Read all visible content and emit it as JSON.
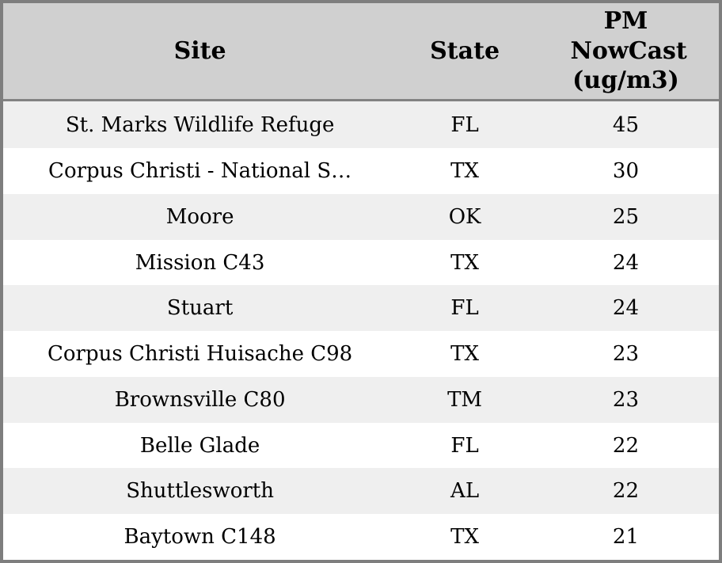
{
  "colors": {
    "frame-border": "#7e7e7e",
    "header-bg": "#d0d0d0",
    "header-border": "#828282",
    "row-odd": "#efefef",
    "row-even": "#ffffff",
    "text": "#000000"
  },
  "table": {
    "columns": [
      {
        "label": "Site"
      },
      {
        "label": "State"
      },
      {
        "label": "PM NowCast (ug/m3)"
      }
    ],
    "rows": [
      {
        "site": "St. Marks Wildlife Refuge",
        "state": "FL",
        "pm_nowcast": "45"
      },
      {
        "site": "Corpus Christi - National S…",
        "state": "TX",
        "pm_nowcast": "30"
      },
      {
        "site": "Moore",
        "state": "OK",
        "pm_nowcast": "25"
      },
      {
        "site": "Mission C43",
        "state": "TX",
        "pm_nowcast": "24"
      },
      {
        "site": "Stuart",
        "state": "FL",
        "pm_nowcast": "24"
      },
      {
        "site": "Corpus Christi Huisache C98",
        "state": "TX",
        "pm_nowcast": "23"
      },
      {
        "site": "Brownsville C80",
        "state": "TM",
        "pm_nowcast": "23"
      },
      {
        "site": "Belle Glade",
        "state": "FL",
        "pm_nowcast": "22"
      },
      {
        "site": "Shuttlesworth",
        "state": "AL",
        "pm_nowcast": "22"
      },
      {
        "site": "Baytown C148",
        "state": "TX",
        "pm_nowcast": "21"
      }
    ]
  }
}
